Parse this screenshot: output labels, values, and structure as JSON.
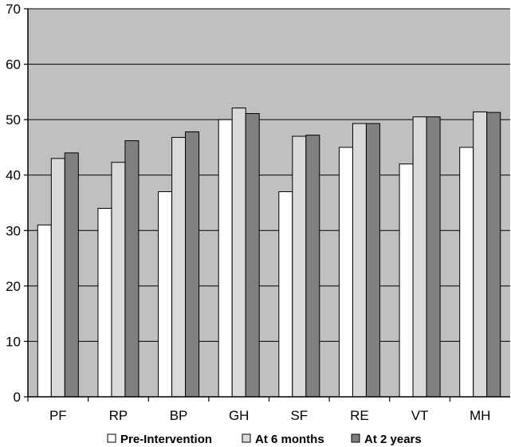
{
  "chart_data": {
    "type": "bar",
    "categories": [
      "PF",
      "RP",
      "BP",
      "GH",
      "SF",
      "RE",
      "VT",
      "MH"
    ],
    "series": [
      {
        "name": "Pre-Intervention",
        "values": [
          31,
          34,
          37,
          50,
          37,
          45,
          42,
          45
        ]
      },
      {
        "name": "At 6 months",
        "values": [
          43,
          42.3,
          46.8,
          52.1,
          47,
          49.3,
          50.5,
          51.4
        ]
      },
      {
        "name": "At 2 years",
        "values": [
          44,
          46.2,
          47.8,
          51.1,
          47.2,
          49.3,
          50.5,
          51.3
        ]
      }
    ],
    "ylim": [
      0,
      70
    ],
    "yticks": [
      "0",
      "10",
      "20",
      "30",
      "40",
      "50",
      "60",
      "70"
    ],
    "grid": true,
    "legend_position": "bottom",
    "colors": {
      "plot_background": "#c0c0c0",
      "series": [
        "#ffffff",
        "#d9d9d9",
        "#808080"
      ],
      "outline": "#000000"
    }
  }
}
